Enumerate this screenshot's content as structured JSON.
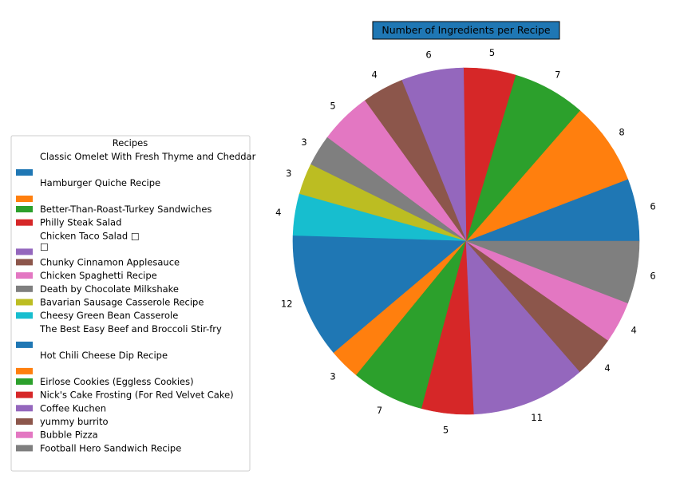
{
  "chart_data": {
    "type": "pie",
    "title": "Number of Ingredients per Recipe",
    "title_bg": "#1f77b4",
    "legend_title": "Recipes",
    "legend_position": "left",
    "start_angle_deg": 0,
    "direction": "counterclockwise",
    "slices": [
      {
        "label": "Classic Omelet With Fresh Thyme and Cheddar",
        "value": 6,
        "color": "#1f77b4",
        "gap_after": true
      },
      {
        "label": "Hamburger Quiche Recipe",
        "value": 8,
        "color": "#ff7f0e",
        "gap_after": true
      },
      {
        "label": "Better-Than-Roast-Turkey Sandwiches",
        "value": 7,
        "color": "#2ca02c"
      },
      {
        "label": "Philly Steak Salad",
        "value": 5,
        "color": "#d62728"
      },
      {
        "label": "Chicken Taco Salad □\n□",
        "value": 6,
        "color": "#9467bd",
        "gap_after": true
      },
      {
        "label": "Chunky Cinnamon Applesauce",
        "value": 4,
        "color": "#8c564b"
      },
      {
        "label": "Chicken Spaghetti Recipe",
        "value": 5,
        "color": "#e377c2"
      },
      {
        "label": "Death by Chocolate Milkshake",
        "value": 3,
        "color": "#7f7f7f"
      },
      {
        "label": "Bavarian Sausage Casserole Recipe",
        "value": 3,
        "color": "#bcbd22"
      },
      {
        "label": "Cheesy Green Bean Casserole",
        "value": 4,
        "color": "#17becf"
      },
      {
        "label": "The Best Easy Beef and Broccoli Stir-fry",
        "value": 12,
        "color": "#1f77b4",
        "gap_after": true
      },
      {
        "label": "Hot Chili Cheese Dip Recipe",
        "value": 3,
        "color": "#ff7f0e",
        "gap_after": true
      },
      {
        "label": "Eirlose Cookies (Eggless Cookies)",
        "value": 7,
        "color": "#2ca02c"
      },
      {
        "label": "Nick's Cake Frosting (For Red Velvet Cake)",
        "value": 5,
        "color": "#d62728"
      },
      {
        "label": "Coffee Kuchen",
        "value": 11,
        "color": "#9467bd"
      },
      {
        "label": "yummy burrito",
        "value": 4,
        "color": "#8c564b"
      },
      {
        "label": "Bubble Pizza",
        "value": 4,
        "color": "#e377c2"
      },
      {
        "label": "Football Hero Sandwich Recipe",
        "value": 6,
        "color": "#7f7f7f"
      }
    ]
  }
}
